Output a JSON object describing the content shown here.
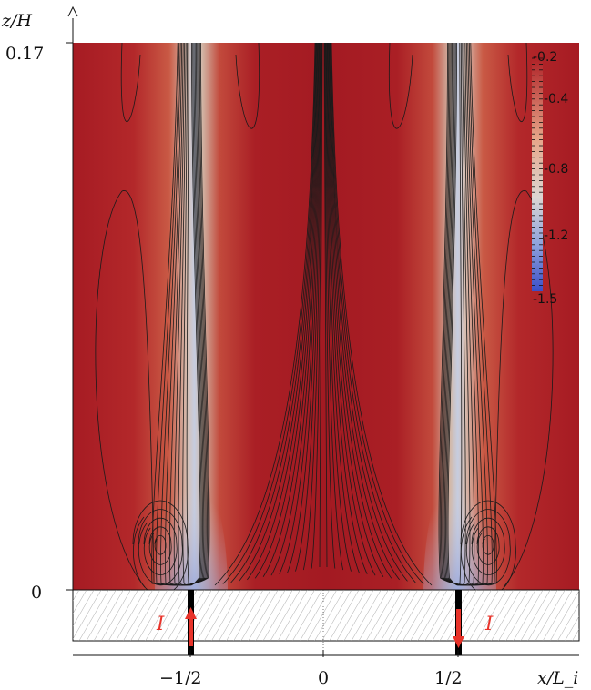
{
  "figure": {
    "y_axis_label": "z/H",
    "x_axis_label": "x/L_i",
    "y_ticks": [
      "0.17",
      "0"
    ],
    "x_ticks": [
      "−1/2",
      "0",
      "1/2"
    ],
    "current_label_left": "I",
    "current_label_right": "I"
  },
  "colorbar": {
    "tick_labels": [
      "-0.2",
      "-0.4",
      "-0.8",
      "-1.2",
      "-1.5"
    ],
    "colors": {
      "high": "#ae1f25",
      "mid": "#dcd6d2",
      "low": "#3b4ec8"
    }
  },
  "colors": {
    "field_background": "#a81c24",
    "streamline": "#1a1a1a",
    "current_arrow": "#e8332a",
    "hatch_region": "#ffffff"
  }
}
